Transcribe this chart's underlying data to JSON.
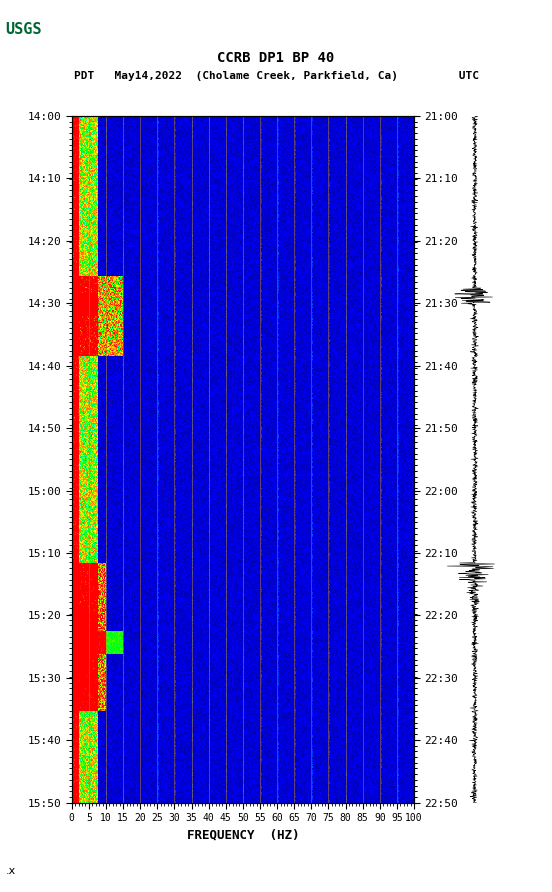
{
  "title_line1": "CCRB DP1 BP 40",
  "title_line2": "PDT   May14,2022  (Cholame Creek, Parkfield, Ca)         UTC",
  "xlabel": "FREQUENCY  (HZ)",
  "freq_ticks": [
    0,
    5,
    10,
    15,
    20,
    25,
    30,
    35,
    40,
    45,
    50,
    55,
    60,
    65,
    70,
    75,
    80,
    85,
    90,
    95,
    100
  ],
  "time_left": [
    "14:00",
    "14:10",
    "14:20",
    "14:30",
    "14:40",
    "14:50",
    "15:00",
    "15:10",
    "15:20",
    "15:30",
    "15:40",
    "15:50"
  ],
  "time_right": [
    "21:00",
    "21:10",
    "21:20",
    "21:30",
    "21:40",
    "21:50",
    "22:00",
    "22:10",
    "22:20",
    "22:30",
    "22:40",
    "22:50"
  ],
  "freq_min": 0,
  "freq_max": 100,
  "n_time": 600,
  "n_freq": 400,
  "bg_color": "#ffffff",
  "spect_bg": "#0000cc",
  "usgs_green": "#006633"
}
